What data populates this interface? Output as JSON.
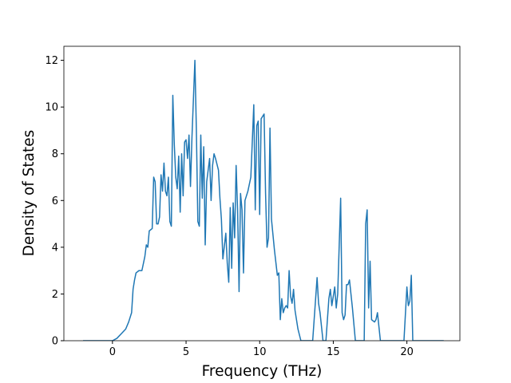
{
  "chart_data": {
    "type": "line",
    "x_label": "Frequency (THz)",
    "y_label": "Density of States",
    "x": [
      -2,
      0,
      0.3,
      0.6,
      0.9,
      1.1,
      1.3,
      1.4,
      1.5,
      1.6,
      1.8,
      2.0,
      2.2,
      2.3,
      2.4,
      2.5,
      2.7,
      2.8,
      2.9,
      3.0,
      3.1,
      3.2,
      3.3,
      3.4,
      3.5,
      3.6,
      3.7,
      3.8,
      3.9,
      4.0,
      4.1,
      4.2,
      4.3,
      4.4,
      4.5,
      4.6,
      4.7,
      4.8,
      4.9,
      5.0,
      5.1,
      5.2,
      5.3,
      5.4,
      5.6,
      5.7,
      5.8,
      5.9,
      6.0,
      6.1,
      6.2,
      6.3,
      6.4,
      6.5,
      6.6,
      6.7,
      6.8,
      6.9,
      7.0,
      7.2,
      7.3,
      7.4,
      7.5,
      7.7,
      7.8,
      7.9,
      8.0,
      8.1,
      8.2,
      8.3,
      8.4,
      8.5,
      8.6,
      8.7,
      8.8,
      8.9,
      9.0,
      9.2,
      9.4,
      9.6,
      9.7,
      9.8,
      9.9,
      10.0,
      10.1,
      10.3,
      10.4,
      10.5,
      10.6,
      10.7,
      10.8,
      11.0,
      11.2,
      11.3,
      11.4,
      11.5,
      11.6,
      11.7,
      11.8,
      11.9,
      12.0,
      12.1,
      12.2,
      12.3,
      12.4,
      12.6,
      12.8,
      13.6,
      13.8,
      13.9,
      14.0,
      14.1,
      14.2,
      14.3,
      14.5,
      14.7,
      14.8,
      14.9,
      15.0,
      15.1,
      15.2,
      15.3,
      15.5,
      15.6,
      15.7,
      15.8,
      15.9,
      16.0,
      16.1,
      16.2,
      16.3,
      16.5,
      17.1,
      17.2,
      17.3,
      17.4,
      17.5,
      17.6,
      17.8,
      17.9,
      18.0,
      18.2,
      19.8,
      20.0,
      20.1,
      20.2,
      20.3,
      20.4,
      22.5
    ],
    "series": [
      {
        "color": "#1f77b4",
        "values": [
          0,
          0,
          0.1,
          0.3,
          0.5,
          0.8,
          1.2,
          2.2,
          2.6,
          2.9,
          3.0,
          3.0,
          3.6,
          4.1,
          4.0,
          4.7,
          4.8,
          7.0,
          6.8,
          5.0,
          5.0,
          5.3,
          7.1,
          6.4,
          7.6,
          6.4,
          6.2,
          7.0,
          5.1,
          4.9,
          10.5,
          8.4,
          7.0,
          6.5,
          7.9,
          5.5,
          8.0,
          6.2,
          8.5,
          8.6,
          7.8,
          8.8,
          6.6,
          8.7,
          12.0,
          9.0,
          5.1,
          4.9,
          8.8,
          6.1,
          8.3,
          4.1,
          6.8,
          7.3,
          7.8,
          6.0,
          7.5,
          8.0,
          7.8,
          7.3,
          6.1,
          5.2,
          3.5,
          4.6,
          3.3,
          2.5,
          5.7,
          3.1,
          5.9,
          4.4,
          7.5,
          5.6,
          2.1,
          6.3,
          5.6,
          2.9,
          6.0,
          6.4,
          7.0,
          10.1,
          5.6,
          9.2,
          9.4,
          5.4,
          9.5,
          9.7,
          6.3,
          4.0,
          4.4,
          9.1,
          5.2,
          3.9,
          2.8,
          2.9,
          0.9,
          1.8,
          1.2,
          1.4,
          1.5,
          1.4,
          3.0,
          1.9,
          1.6,
          2.2,
          1.3,
          0.5,
          0,
          0,
          1.8,
          2.7,
          1.6,
          1.2,
          0.6,
          0,
          0,
          1.8,
          2.2,
          1.5,
          1.9,
          2.3,
          1.4,
          2.0,
          6.1,
          1.2,
          0.9,
          1.1,
          2.4,
          2.4,
          2.6,
          2.0,
          1.4,
          0,
          0,
          5.0,
          5.6,
          1.4,
          3.4,
          0.9,
          0.8,
          0.9,
          1.2,
          0,
          0,
          2.3,
          1.5,
          1.7,
          2.8,
          0,
          0
        ]
      }
    ],
    "xlim": [
      -3.3,
      23.6
    ],
    "ylim": [
      0,
      12.6
    ],
    "xticks": [
      0,
      5,
      10,
      15,
      20
    ],
    "yticks": [
      0,
      2,
      4,
      6,
      8,
      10,
      12
    ],
    "grid": false
  }
}
